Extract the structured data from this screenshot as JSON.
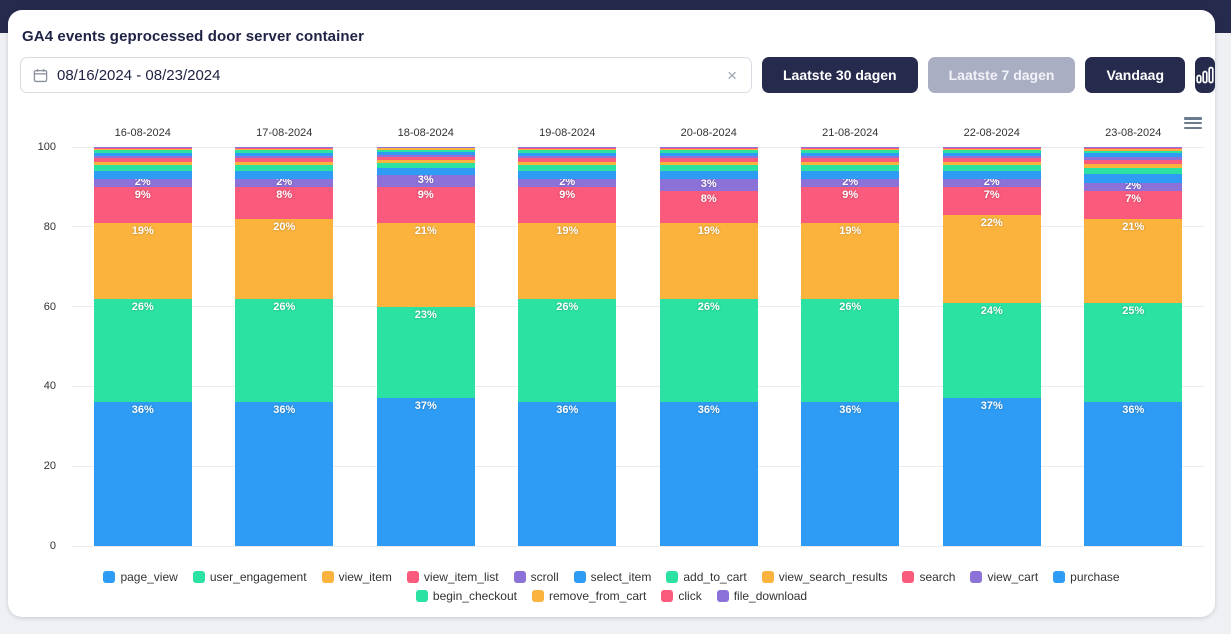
{
  "header": {
    "title": "GA4 events geprocessed door server container"
  },
  "toolbar": {
    "date_range": {
      "value": "08/16/2024 - 08/23/2024",
      "calendar_icon": "calendar-icon",
      "clear_glyph": "×"
    },
    "buttons": [
      {
        "label": "Laatste 30 dagen",
        "variant": "dark"
      },
      {
        "label": "Laatste 7 dagen",
        "variant": "muted"
      },
      {
        "label": "Vandaag",
        "variant": "dark"
      },
      {
        "label": "",
        "variant": "dark",
        "icon": "bar-chart-icon"
      }
    ]
  },
  "icons": {
    "chart_menu": "hamburger-menu-icon"
  },
  "colors": {
    "navy": "#262b4d",
    "page_bg": "#eef0f3",
    "blue": "#2e9cf4",
    "green": "#2be2a2",
    "amber": "#fbb33e",
    "red": "#fa5a7b",
    "purple": "#8b71d8"
  },
  "chart_data": {
    "type": "bar",
    "stacked": true,
    "percent_axis": true,
    "title": "GA4 events geprocessed door server container",
    "categories": [
      "16-08-2024",
      "17-08-2024",
      "18-08-2024",
      "19-08-2024",
      "20-08-2024",
      "21-08-2024",
      "22-08-2024",
      "23-08-2024"
    ],
    "xlabel": "",
    "ylabel": "",
    "ylim": [
      0,
      100
    ],
    "y_ticks": [
      0,
      20,
      40,
      60,
      80,
      100
    ],
    "grid": true,
    "legend_position": "bottom",
    "x_labels_position": "top",
    "series": [
      {
        "name": "page_view",
        "color": "#2e9cf4",
        "show_labels": true,
        "values": [
          36,
          36,
          37,
          36,
          36,
          36,
          37,
          36
        ]
      },
      {
        "name": "user_engagement",
        "color": "#2be2a2",
        "show_labels": true,
        "values": [
          26,
          26,
          23,
          26,
          26,
          26,
          24,
          25
        ]
      },
      {
        "name": "view_item",
        "color": "#fbb33e",
        "show_labels": true,
        "values": [
          19,
          20,
          21,
          19,
          19,
          19,
          22,
          21
        ]
      },
      {
        "name": "view_item_list",
        "color": "#fa5a7b",
        "show_labels": true,
        "values": [
          9,
          8,
          9,
          9,
          8,
          9,
          7,
          7
        ]
      },
      {
        "name": "scroll",
        "color": "#8b71d8",
        "show_labels": true,
        "values": [
          2,
          2,
          3,
          2,
          3,
          2,
          2,
          2
        ]
      },
      {
        "name": "select_item",
        "color": "#2e9cf4",
        "show_labels": false,
        "values": [
          2,
          2,
          1.8,
          2,
          2,
          2,
          2,
          2.2
        ]
      },
      {
        "name": "add_to_cart",
        "color": "#2be2a2",
        "show_labels": false,
        "values": [
          1.4,
          1.4,
          1.2,
          1.4,
          1.4,
          1.4,
          1.4,
          1.6
        ]
      },
      {
        "name": "view_search_results",
        "color": "#fbb33e",
        "show_labels": false,
        "values": [
          0.9,
          0.9,
          0.8,
          0.9,
          0.9,
          0.9,
          0.9,
          1.0
        ]
      },
      {
        "name": "search",
        "color": "#fa5a7b",
        "show_labels": false,
        "values": [
          0.9,
          0.9,
          0.8,
          0.9,
          0.9,
          0.9,
          0.9,
          1.0
        ]
      },
      {
        "name": "view_cart",
        "color": "#8b71d8",
        "show_labels": false,
        "values": [
          0.6,
          0.6,
          0.5,
          0.6,
          0.6,
          0.6,
          0.6,
          0.7
        ]
      },
      {
        "name": "purchase",
        "color": "#2e9cf4",
        "show_labels": false,
        "values": [
          0.8,
          0.8,
          0.7,
          0.8,
          0.8,
          0.8,
          0.8,
          0.9
        ]
      },
      {
        "name": "begin_checkout",
        "color": "#2be2a2",
        "show_labels": false,
        "values": [
          0.6,
          0.6,
          0.5,
          0.6,
          0.6,
          0.6,
          0.6,
          0.7
        ]
      },
      {
        "name": "remove_from_cart",
        "color": "#fbb33e",
        "show_labels": false,
        "values": [
          0.4,
          0.4,
          0.35,
          0.4,
          0.4,
          0.4,
          0.4,
          0.45
        ]
      },
      {
        "name": "click",
        "color": "#fa5a7b",
        "show_labels": false,
        "values": [
          0.25,
          0.25,
          0.25,
          0.25,
          0.25,
          0.25,
          0.25,
          0.3
        ]
      },
      {
        "name": "file_download",
        "color": "#8b71d8",
        "show_labels": false,
        "values": [
          0.15,
          0.15,
          0.1,
          0.15,
          0.15,
          0.15,
          0.15,
          0.15
        ]
      }
    ]
  }
}
